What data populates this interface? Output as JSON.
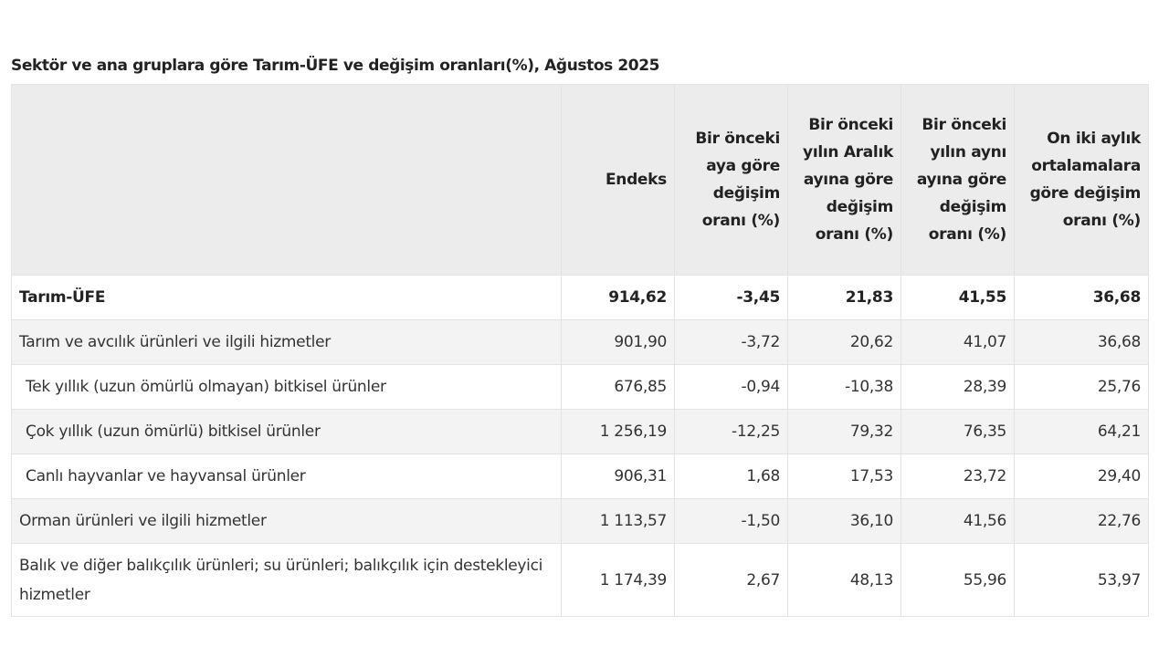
{
  "title": "Sektör ve ana gruplara göre Tarım-ÜFE ve değişim oranları(%), Ağustos 2025",
  "table": {
    "headers": [
      "",
      "Endeks",
      "Bir önceki aya göre değişim oranı (%)",
      "Bir önceki yılın Aralık ayına göre değişim oranı (%)",
      "Bir önceki yılın aynı ayına göre değişim oranı (%)",
      "On iki aylık ortalamalara göre değişim oranı (%)"
    ],
    "rows": [
      {
        "label": "Tarım-ÜFE",
        "values": [
          "914,62",
          "-3,45",
          "21,83",
          "41,55",
          "36,68"
        ]
      },
      {
        "label": "Tarım ve avcılık ürünleri ve ilgili hizmetler",
        "values": [
          "901,90",
          "-3,72",
          "20,62",
          "41,07",
          "36,68"
        ]
      },
      {
        "label": "Tek yıllık (uzun ömürlü olmayan) bitkisel ürünler",
        "values": [
          "676,85",
          "-0,94",
          "-10,38",
          "28,39",
          "25,76"
        ]
      },
      {
        "label": "Çok yıllık (uzun ömürlü) bitkisel ürünler",
        "values": [
          "1 256,19",
          "-12,25",
          "79,32",
          "76,35",
          "64,21"
        ]
      },
      {
        "label": "Canlı hayvanlar ve hayvansal ürünler",
        "values": [
          "906,31",
          "1,68",
          "17,53",
          "23,72",
          "29,40"
        ]
      },
      {
        "label": "Orman ürünleri ve ilgili hizmetler",
        "values": [
          "1 113,57",
          "-1,50",
          "36,10",
          "41,56",
          "22,76"
        ]
      },
      {
        "label": "Balık ve diğer balıkçılık ürünleri; su ürünleri; balıkçılık için destekleyici hizmetler",
        "values": [
          "1 174,39",
          "2,67",
          "48,13",
          "55,96",
          "53,97"
        ]
      }
    ]
  }
}
